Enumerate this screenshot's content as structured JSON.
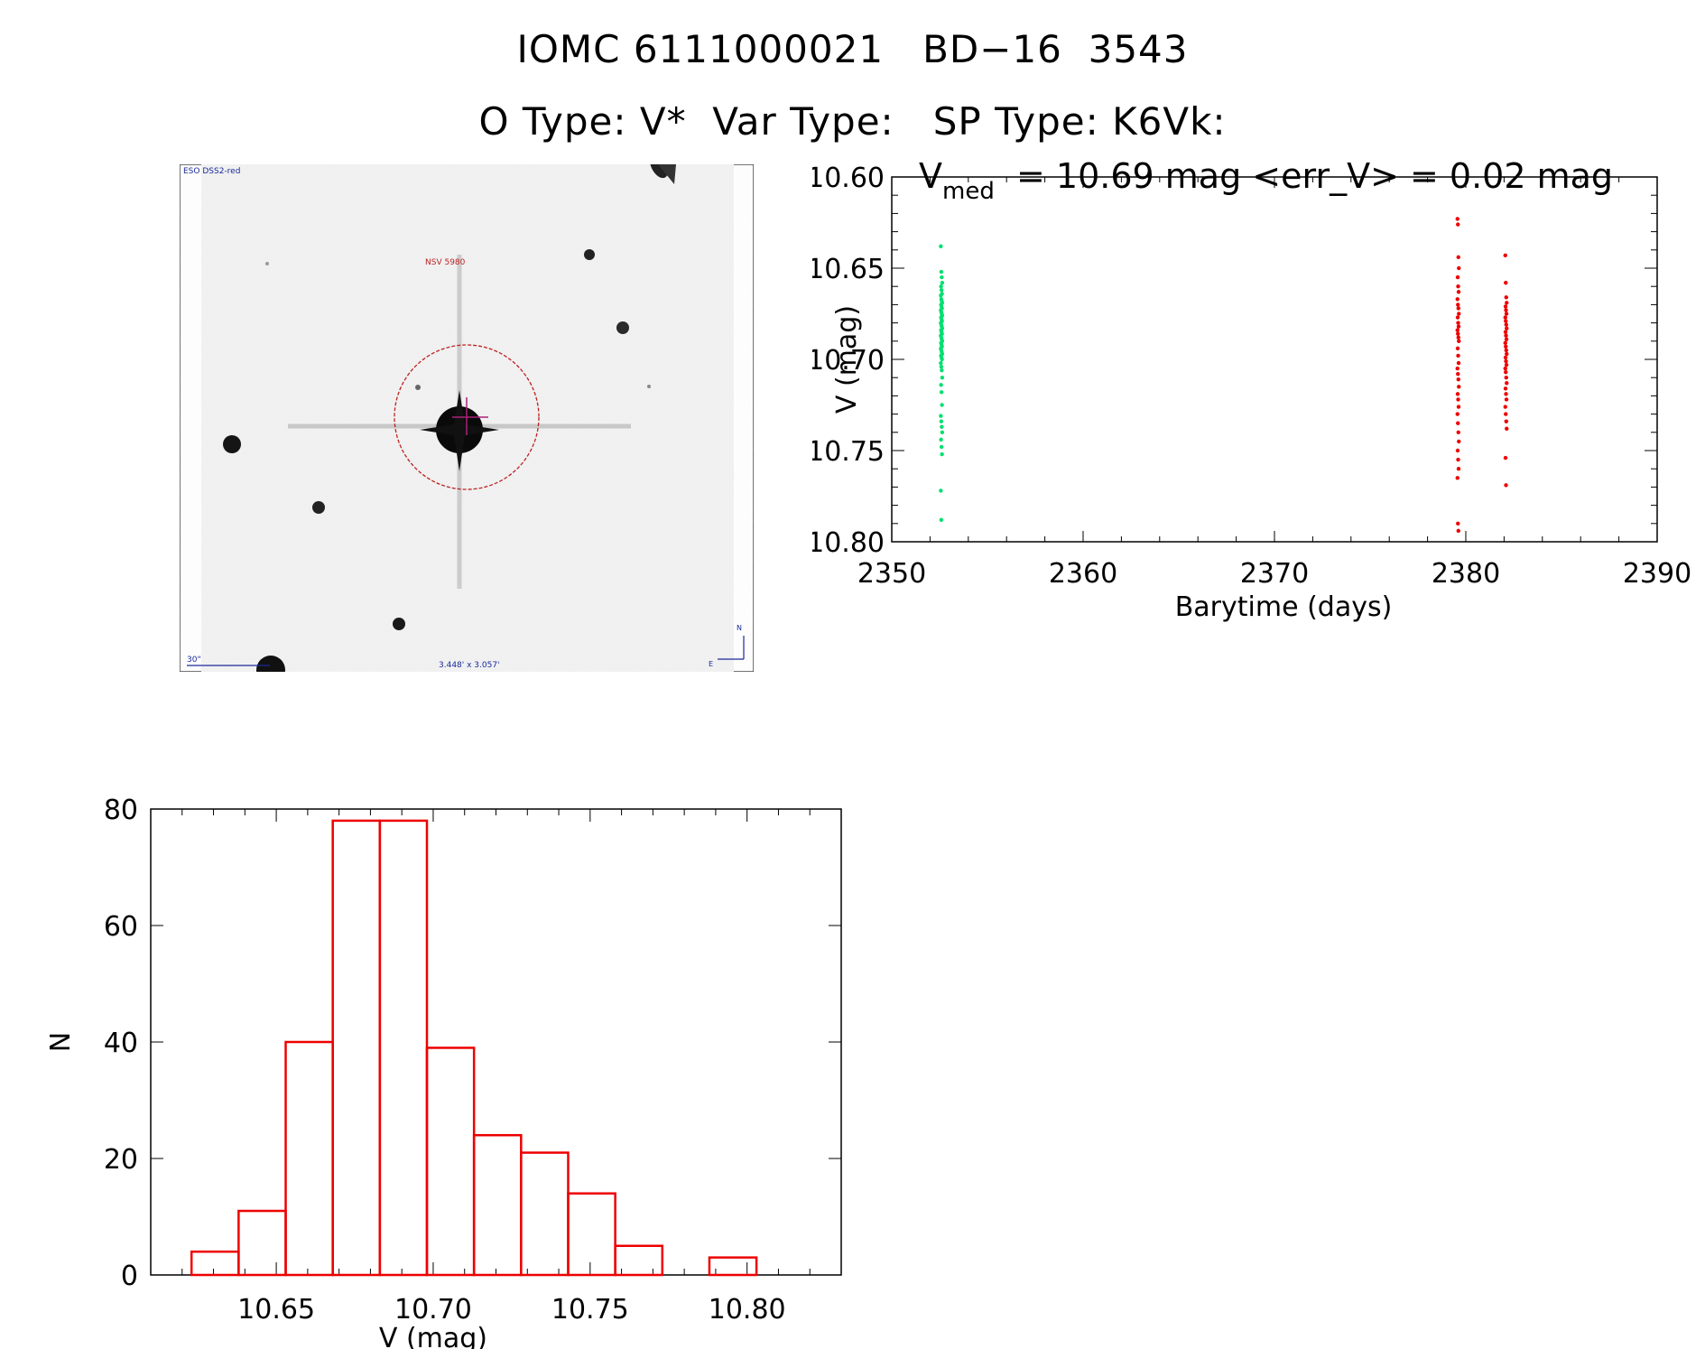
{
  "header": {
    "title": "IOMC 6111000021   BD−16  3543",
    "subtitle": "O Type: V*  Var Type:   SP Type: K6Vk:"
  },
  "finder": {
    "survey_label": "ESO DSS2-red",
    "target_label": "NSV 5980",
    "scale_label": "30\"",
    "fov_label": "3.448' x 3.057'",
    "north_label": "N",
    "east_label": "E"
  },
  "chart_data": [
    {
      "type": "scatter",
      "title_prefix": "V",
      "title_sub": "med",
      "title_rest": " = 10.69 mag <err_V> = 0.02 mag",
      "xlabel": "Barytime (days)",
      "ylabel": "V (mag)",
      "xlim": [
        2350,
        2390
      ],
      "ylim": [
        10.8,
        10.6
      ],
      "xticks": [
        2350,
        2360,
        2370,
        2380,
        2390
      ],
      "yticks": [
        "10.60",
        "10.65",
        "10.70",
        "10.75",
        "10.80"
      ],
      "series": [
        {
          "color": "#00e070",
          "x": 2352.6,
          "y": [
            10.638,
            10.652,
            10.655,
            10.658,
            10.66,
            10.662,
            10.664,
            10.665,
            10.667,
            10.668,
            10.669,
            10.67,
            10.671,
            10.672,
            10.673,
            10.674,
            10.675,
            10.676,
            10.677,
            10.678,
            10.679,
            10.68,
            10.681,
            10.682,
            10.683,
            10.684,
            10.685,
            10.686,
            10.687,
            10.688,
            10.689,
            10.69,
            10.691,
            10.692,
            10.693,
            10.694,
            10.695,
            10.696,
            10.697,
            10.698,
            10.699,
            10.7,
            10.702,
            10.704,
            10.706,
            10.71,
            10.714,
            10.718,
            10.725,
            10.731,
            10.734,
            10.737,
            10.74,
            10.744,
            10.748,
            10.752,
            10.772,
            10.788
          ]
        },
        {
          "color": "#ee0000",
          "x": 2379.6,
          "y": [
            10.623,
            10.626,
            10.644,
            10.65,
            10.655,
            10.66,
            10.663,
            10.667,
            10.67,
            10.672,
            10.675,
            10.677,
            10.68,
            10.682,
            10.684,
            10.686,
            10.688,
            10.69,
            10.694,
            10.698,
            10.702,
            10.705,
            10.708,
            10.711,
            10.715,
            10.719,
            10.722,
            10.726,
            10.73,
            10.735,
            10.74,
            10.745,
            10.75,
            10.755,
            10.76,
            10.765,
            10.79,
            10.794
          ]
        },
        {
          "color": "#ee0000",
          "x": 2382.1,
          "y": [
            10.643,
            10.658,
            10.666,
            10.669,
            10.671,
            10.673,
            10.675,
            10.677,
            10.679,
            10.681,
            10.683,
            10.685,
            10.687,
            10.689,
            10.691,
            10.693,
            10.695,
            10.697,
            10.699,
            10.701,
            10.703,
            10.705,
            10.707,
            10.71,
            10.713,
            10.716,
            10.719,
            10.722,
            10.726,
            10.73,
            10.734,
            10.738,
            10.754,
            10.769
          ]
        }
      ]
    },
    {
      "type": "bar",
      "xlabel": "V (mag)",
      "ylabel": "N",
      "xlim": [
        10.61,
        10.83
      ],
      "ylim": [
        0,
        80
      ],
      "xticks": [
        "10.65",
        "10.70",
        "10.75",
        "10.80"
      ],
      "yticks": [
        "0",
        "20",
        "40",
        "60",
        "80"
      ],
      "bin_width": 0.015,
      "bin_start": [
        10.623,
        10.638,
        10.653,
        10.668,
        10.683,
        10.698,
        10.713,
        10.728,
        10.743,
        10.758,
        10.773,
        10.788
      ],
      "values": [
        4,
        11,
        40,
        78,
        78,
        39,
        24,
        21,
        14,
        5,
        0,
        3
      ]
    }
  ]
}
